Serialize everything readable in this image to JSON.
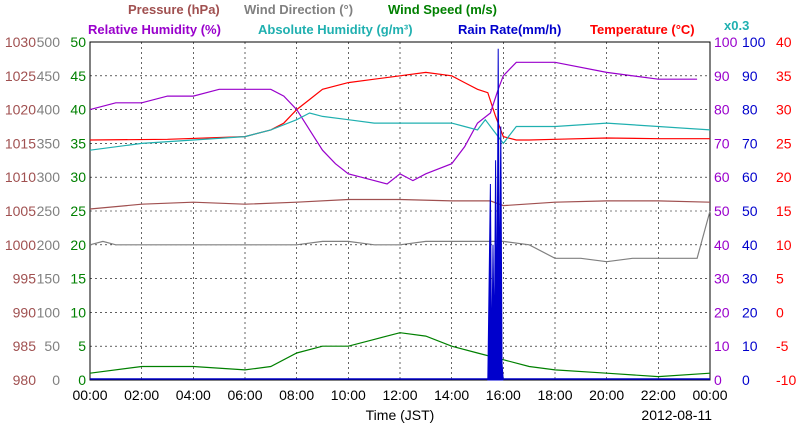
{
  "chart_data": {
    "type": "line",
    "title_rows": [
      [
        {
          "text": "Pressure (hPa)",
          "color": "#a05050"
        },
        {
          "text": "Wind Direction (°)",
          "color": "#808080"
        },
        {
          "text": "Wind Speed (m/s)",
          "color": "#008000"
        }
      ],
      [
        {
          "text": "Relative Humidity (%)",
          "color": "#9900cc"
        },
        {
          "text": "Absolute Humidity (g/m³)",
          "color": "#20b0b0"
        },
        {
          "text": "Rain Rate(mm/h)",
          "color": "#0000cc"
        },
        {
          "text": "Temperature (°C)",
          "color": "#ff0000"
        }
      ]
    ],
    "rain_scale_note": "x0.3",
    "xlabel": "Time (JST)",
    "date": "2012-08-11",
    "x_ticks": [
      "00:00",
      "02:00",
      "04:00",
      "06:00",
      "08:00",
      "10:00",
      "12:00",
      "14:00",
      "16:00",
      "18:00",
      "20:00",
      "22:00",
      "00:00"
    ],
    "xlim": [
      0,
      24
    ],
    "grid": true,
    "axes": {
      "pressure": {
        "color": "#a05050",
        "ylim": [
          980,
          1030
        ],
        "ticks": [
          "980",
          "985",
          "990",
          "995",
          "1000",
          "1005",
          "1010",
          "1015",
          "1020",
          "1025",
          "1030"
        ]
      },
      "wind_direction": {
        "color": "#808080",
        "ylim": [
          0,
          500
        ],
        "ticks": [
          "0",
          "50",
          "100",
          "150",
          "200",
          "250",
          "300",
          "350",
          "400",
          "450",
          "500"
        ]
      },
      "wind_speed": {
        "color": "#008000",
        "ylim": [
          0,
          50
        ],
        "ticks": [
          "0",
          "5",
          "10",
          "15",
          "20",
          "25",
          "30",
          "35",
          "40",
          "45",
          "50"
        ]
      },
      "humidity": {
        "color": "#9900cc",
        "ylim": [
          0,
          100
        ],
        "ticks": [
          "0",
          "10",
          "20",
          "30",
          "40",
          "50",
          "60",
          "70",
          "80",
          "90",
          "100"
        ]
      },
      "rain_rate": {
        "color": "#0000cc",
        "ylim": [
          0,
          100
        ],
        "ticks": [
          "0",
          "10",
          "20",
          "30",
          "40",
          "50",
          "60",
          "70",
          "80",
          "90",
          "100"
        ]
      },
      "temperature": {
        "color": "#ff0000",
        "ylim": [
          -10,
          40
        ],
        "ticks": [
          "-10",
          "-5",
          "0",
          "5",
          "10",
          "15",
          "20",
          "25",
          "30",
          "35",
          "40"
        ]
      }
    },
    "series": [
      {
        "name": "Pressure (hPa)",
        "color": "#a05050",
        "axis": "pressure",
        "x": [
          0,
          2,
          4,
          6,
          8,
          10,
          12,
          14,
          15.5,
          16,
          18,
          20,
          22,
          24
        ],
        "y": [
          1005.3,
          1006,
          1006.3,
          1006,
          1006.3,
          1006.7,
          1006.7,
          1006.5,
          1006.5,
          1005.8,
          1006.3,
          1006.5,
          1006.5,
          1006.3
        ]
      },
      {
        "name": "Temperature (°C)",
        "color": "#ff0000",
        "axis": "temperature",
        "x": [
          0,
          3,
          6,
          7,
          7.5,
          8,
          8.5,
          9,
          10,
          11,
          12,
          13,
          14,
          14.5,
          15,
          15.4,
          15.7,
          16,
          16.5,
          17,
          18,
          20,
          22,
          24
        ],
        "y": [
          25.5,
          25.6,
          26,
          27,
          28,
          30,
          31.5,
          33,
          34,
          34.5,
          35,
          35.5,
          35,
          34,
          33,
          32.5,
          29,
          26,
          25.5,
          25.5,
          25.6,
          25.8,
          25.7,
          25.7
        ]
      },
      {
        "name": "Relative Humidity (%)",
        "color": "#9900cc",
        "axis": "humidity",
        "x": [
          0,
          1,
          2,
          3,
          4,
          5,
          6,
          7,
          7.5,
          8,
          8.5,
          9,
          9.5,
          10,
          11,
          11.5,
          12,
          12.5,
          13,
          14,
          14.5,
          15,
          15.5,
          15.8,
          16,
          16.5,
          17,
          18,
          20,
          22,
          23.5
        ],
        "y": [
          80,
          82,
          82,
          84,
          84,
          86,
          86,
          86,
          84,
          80,
          74,
          68,
          64,
          61,
          59,
          58,
          61,
          59,
          61,
          64,
          69,
          76,
          79,
          86,
          90,
          94,
          94,
          94,
          91,
          89,
          89
        ]
      },
      {
        "name": "Absolute Humidity (g/m³)",
        "color": "#20b0b0",
        "axis": "humidity",
        "x": [
          0,
          2,
          4,
          6,
          7,
          8,
          8.5,
          9,
          10,
          11,
          12,
          13,
          14,
          14.5,
          15,
          15.3,
          15.6,
          16,
          16.5,
          18,
          20,
          22,
          24
        ],
        "y": [
          68,
          70,
          71,
          72,
          74,
          77,
          79,
          78,
          77,
          76,
          76,
          76,
          76,
          75,
          74,
          77,
          74,
          70,
          75,
          75,
          76,
          75,
          74
        ]
      },
      {
        "name": "Wind Direction (°)",
        "color": "#808080",
        "axis": "wind_direction",
        "x": [
          0,
          0.5,
          1,
          2,
          3,
          4,
          5,
          6,
          7,
          8,
          9,
          10,
          11,
          12,
          13,
          14,
          15,
          16,
          17,
          18,
          19,
          20,
          21,
          22,
          23,
          23.5,
          24
        ],
        "y": [
          200,
          205,
          200,
          200,
          200,
          200,
          200,
          200,
          200,
          200,
          205,
          205,
          200,
          200,
          205,
          205,
          205,
          205,
          200,
          180,
          180,
          175,
          180,
          180,
          180,
          180,
          250
        ]
      },
      {
        "name": "Wind Speed (m/s)",
        "color": "#008000",
        "axis": "wind_speed",
        "x": [
          0,
          2,
          4,
          6,
          7,
          8,
          9,
          10,
          11,
          12,
          13,
          14,
          15,
          16,
          17,
          18,
          20,
          22,
          24
        ],
        "y": [
          1,
          2,
          2,
          1.5,
          2,
          4,
          5,
          5,
          6,
          7,
          6.5,
          5,
          4,
          3,
          2,
          1.5,
          1,
          0.5,
          1
        ]
      },
      {
        "name": "Rain Rate(mm/h)",
        "color": "#0000cc",
        "axis": "rain_rate",
        "x": [
          15.4,
          15.5,
          15.55,
          15.6,
          15.65,
          15.7,
          15.75,
          15.8,
          15.85,
          15.9,
          15.95,
          16.0
        ],
        "y": [
          0,
          58,
          5,
          40,
          10,
          65,
          15,
          98,
          20,
          75,
          5,
          0
        ]
      }
    ]
  }
}
